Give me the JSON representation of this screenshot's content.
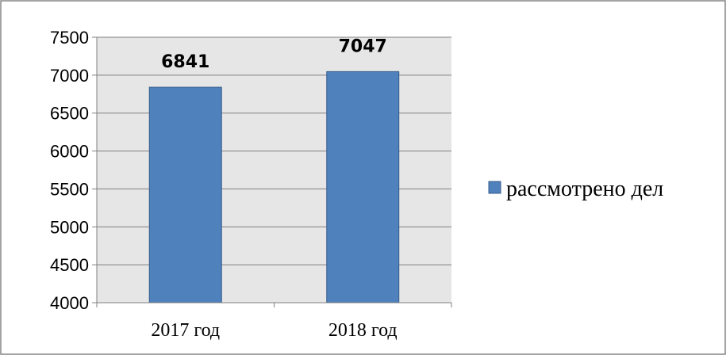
{
  "chart_data": {
    "type": "bar",
    "categories": [
      "2017 год",
      "2018 год"
    ],
    "series": [
      {
        "name": "рассмотрено дел",
        "values": [
          6841,
          7047
        ]
      }
    ],
    "data_labels": [
      "6841",
      "7047"
    ],
    "y_ticks": [
      "4000",
      "4500",
      "5000",
      "5500",
      "6000",
      "6500",
      "7000",
      "7500"
    ],
    "ylim": [
      4000,
      7500
    ],
    "grid": true,
    "legend_position": "right",
    "colors": {
      "bar": "#4f81bd",
      "bar_border": "#385d8a",
      "plot_background": "#e6e6e6"
    }
  }
}
